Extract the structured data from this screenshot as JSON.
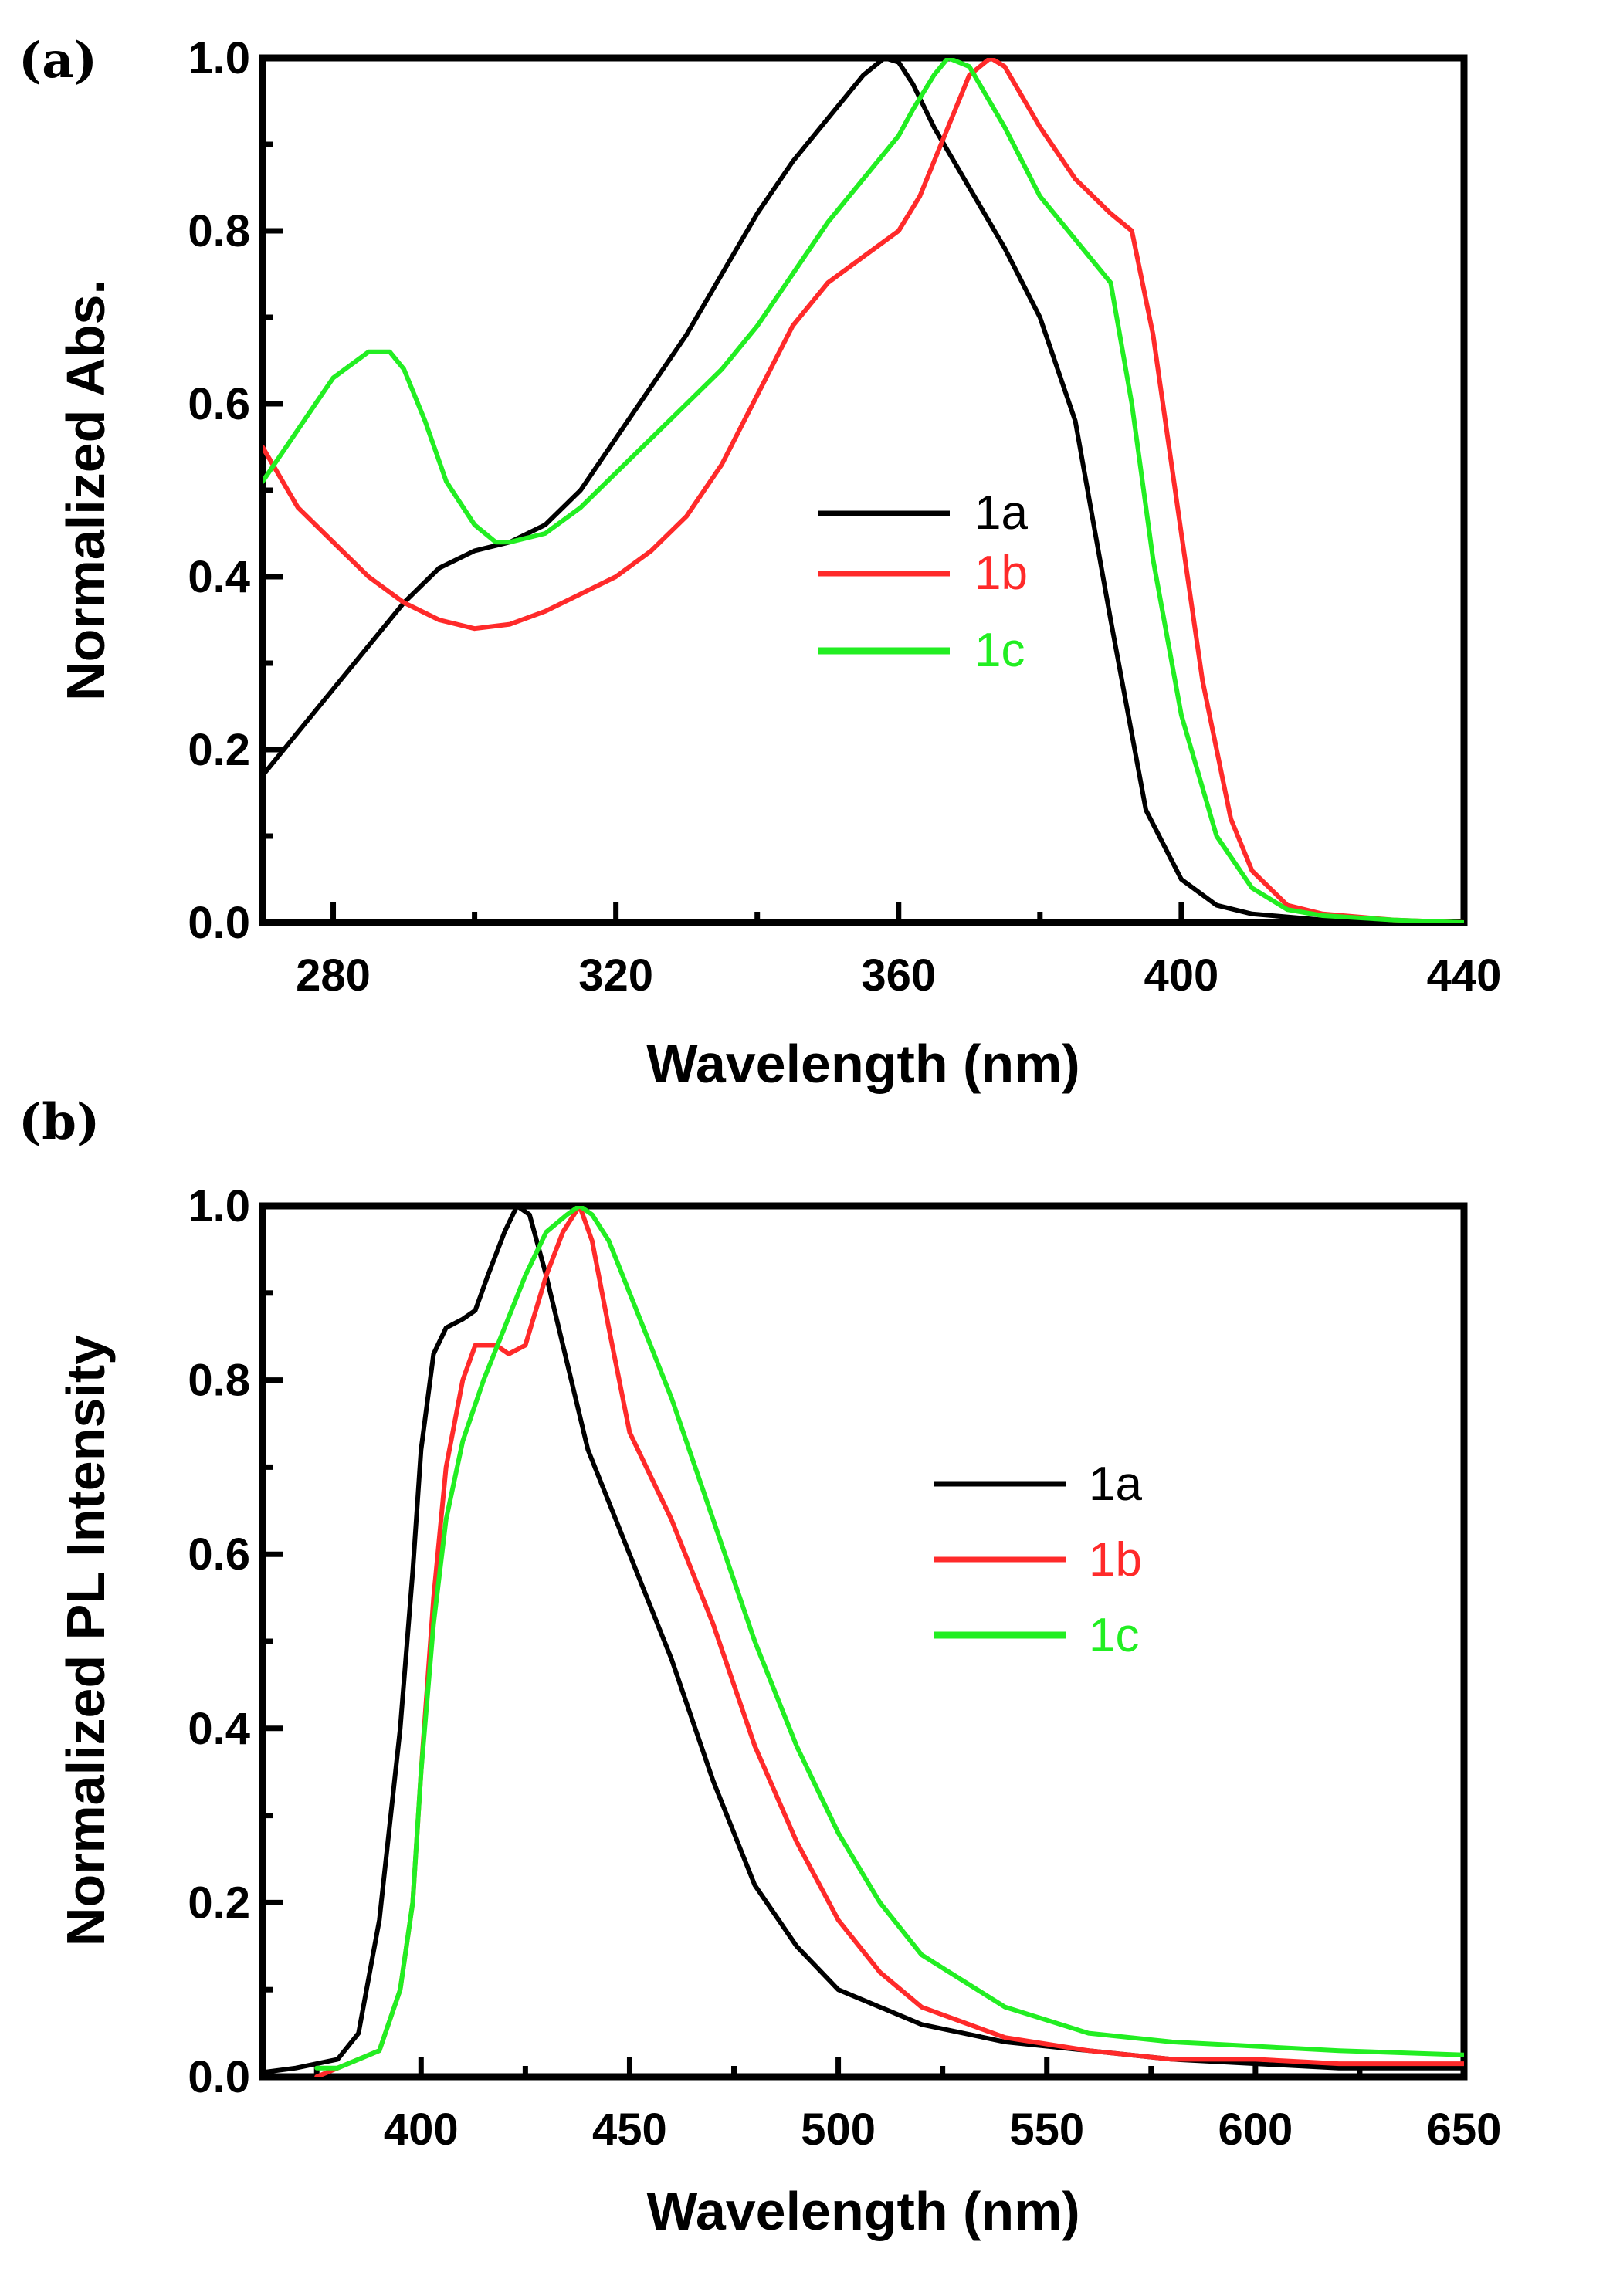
{
  "chart_data": [
    {
      "type": "line",
      "panel_label": "(a)",
      "xlabel": "Wavelength (nm)",
      "ylabel": "Normalized Abs.",
      "xlim": [
        270,
        440
      ],
      "ylim": [
        0,
        1.0
      ],
      "xticks": [
        280,
        320,
        360,
        400,
        440
      ],
      "yticks": [
        0.0,
        0.2,
        0.4,
        0.6,
        0.8,
        1.0
      ],
      "xtick_labels": [
        "280",
        "320",
        "360",
        "400",
        "440"
      ],
      "ytick_labels": [
        "0.0",
        "0.2",
        "0.4",
        "0.6",
        "0.8",
        "1.0"
      ],
      "legend_position": "center-right",
      "series": [
        {
          "name": "1a",
          "color": "#000000",
          "x": [
            270,
            280,
            290,
            295,
            300,
            305,
            310,
            315,
            320,
            325,
            330,
            335,
            340,
            345,
            350,
            355,
            358,
            360,
            362,
            365,
            370,
            375,
            380,
            385,
            390,
            395,
            400,
            405,
            410,
            420,
            430,
            440
          ],
          "y": [
            0.17,
            0.27,
            0.37,
            0.41,
            0.43,
            0.44,
            0.46,
            0.5,
            0.56,
            0.62,
            0.68,
            0.75,
            0.82,
            0.88,
            0.93,
            0.98,
            1.0,
            0.995,
            0.97,
            0.92,
            0.85,
            0.78,
            0.7,
            0.58,
            0.35,
            0.13,
            0.05,
            0.02,
            0.01,
            0.003,
            0.0,
            0.0
          ]
        },
        {
          "name": "1b",
          "color": "#ff2a2a",
          "x": [
            270,
            275,
            280,
            285,
            290,
            295,
            300,
            305,
            310,
            315,
            320,
            325,
            330,
            335,
            340,
            345,
            350,
            355,
            360,
            363,
            365,
            368,
            370,
            373,
            375,
            380,
            385,
            390,
            393,
            396,
            400,
            403,
            407,
            410,
            415,
            420,
            430,
            440
          ],
          "y": [
            0.55,
            0.48,
            0.44,
            0.4,
            0.37,
            0.35,
            0.34,
            0.345,
            0.36,
            0.38,
            0.4,
            0.43,
            0.47,
            0.53,
            0.61,
            0.69,
            0.74,
            0.77,
            0.8,
            0.84,
            0.88,
            0.94,
            0.98,
            1.0,
            0.99,
            0.92,
            0.86,
            0.82,
            0.8,
            0.68,
            0.45,
            0.28,
            0.12,
            0.06,
            0.02,
            0.01,
            0.003,
            0.0
          ]
        },
        {
          "name": "1c",
          "color": "#22ee22",
          "x": [
            270,
            275,
            280,
            285,
            288,
            290,
            293,
            296,
            300,
            303,
            305,
            310,
            315,
            320,
            325,
            330,
            335,
            340,
            345,
            350,
            355,
            360,
            362,
            365,
            367,
            370,
            375,
            380,
            385,
            390,
            393,
            396,
            400,
            405,
            410,
            415,
            420,
            430,
            440
          ],
          "y": [
            0.51,
            0.57,
            0.63,
            0.66,
            0.66,
            0.64,
            0.58,
            0.51,
            0.46,
            0.44,
            0.44,
            0.45,
            0.48,
            0.52,
            0.56,
            0.6,
            0.64,
            0.69,
            0.75,
            0.81,
            0.86,
            0.91,
            0.94,
            0.98,
            1.0,
            0.99,
            0.92,
            0.84,
            0.79,
            0.74,
            0.6,
            0.42,
            0.24,
            0.1,
            0.04,
            0.015,
            0.008,
            0.003,
            0.0
          ]
        }
      ]
    },
    {
      "type": "line",
      "panel_label": "(b)",
      "xlabel": "Wavelength (nm)",
      "ylabel": "Normalized PL Intensity",
      "xlim": [
        362,
        650
      ],
      "ylim": [
        0,
        1.0
      ],
      "xticks": [
        400,
        450,
        500,
        550,
        600,
        650
      ],
      "yticks": [
        0.0,
        0.2,
        0.4,
        0.6,
        0.8,
        1.0
      ],
      "xtick_labels": [
        "400",
        "450",
        "500",
        "550",
        "600",
        "650"
      ],
      "ytick_labels": [
        "0.0",
        "0.2",
        "0.4",
        "0.6",
        "0.8",
        "1.0"
      ],
      "legend_position": "center-right",
      "series": [
        {
          "name": "1a",
          "color": "#000000",
          "x": [
            362,
            370,
            380,
            385,
            390,
            395,
            398,
            400,
            403,
            406,
            410,
            413,
            416,
            420,
            423,
            426,
            430,
            435,
            440,
            450,
            460,
            470,
            480,
            490,
            500,
            520,
            540,
            560,
            580,
            600,
            620,
            650
          ],
          "y": [
            0.005,
            0.01,
            0.02,
            0.05,
            0.18,
            0.4,
            0.58,
            0.72,
            0.83,
            0.86,
            0.87,
            0.88,
            0.92,
            0.97,
            1.0,
            0.99,
            0.92,
            0.82,
            0.72,
            0.6,
            0.48,
            0.34,
            0.22,
            0.15,
            0.1,
            0.06,
            0.04,
            0.03,
            0.02,
            0.015,
            0.01,
            0.01
          ]
        },
        {
          "name": "1b",
          "color": "#ff2a2a",
          "x": [
            375,
            380,
            390,
            395,
            398,
            400,
            403,
            406,
            410,
            413,
            415,
            418,
            421,
            425,
            430,
            434,
            438,
            441,
            445,
            450,
            460,
            470,
            480,
            490,
            500,
            510,
            520,
            540,
            560,
            580,
            600,
            620,
            650
          ],
          "y": [
            0.0,
            0.01,
            0.03,
            0.1,
            0.2,
            0.35,
            0.55,
            0.7,
            0.8,
            0.84,
            0.84,
            0.84,
            0.83,
            0.84,
            0.92,
            0.97,
            1.0,
            0.96,
            0.86,
            0.74,
            0.64,
            0.52,
            0.38,
            0.27,
            0.18,
            0.12,
            0.08,
            0.045,
            0.03,
            0.02,
            0.02,
            0.015,
            0.015
          ]
        },
        {
          "name": "1c",
          "color": "#22ee22",
          "x": [
            375,
            380,
            390,
            395,
            398,
            400,
            403,
            406,
            410,
            415,
            420,
            425,
            430,
            435,
            438,
            441,
            445,
            450,
            460,
            470,
            480,
            490,
            500,
            510,
            520,
            540,
            560,
            580,
            600,
            620,
            650
          ],
          "y": [
            0.01,
            0.01,
            0.03,
            0.1,
            0.2,
            0.35,
            0.52,
            0.64,
            0.73,
            0.8,
            0.86,
            0.92,
            0.97,
            0.99,
            1.0,
            0.99,
            0.96,
            0.9,
            0.78,
            0.64,
            0.5,
            0.38,
            0.28,
            0.2,
            0.14,
            0.08,
            0.05,
            0.04,
            0.035,
            0.03,
            0.025
          ]
        }
      ]
    }
  ]
}
